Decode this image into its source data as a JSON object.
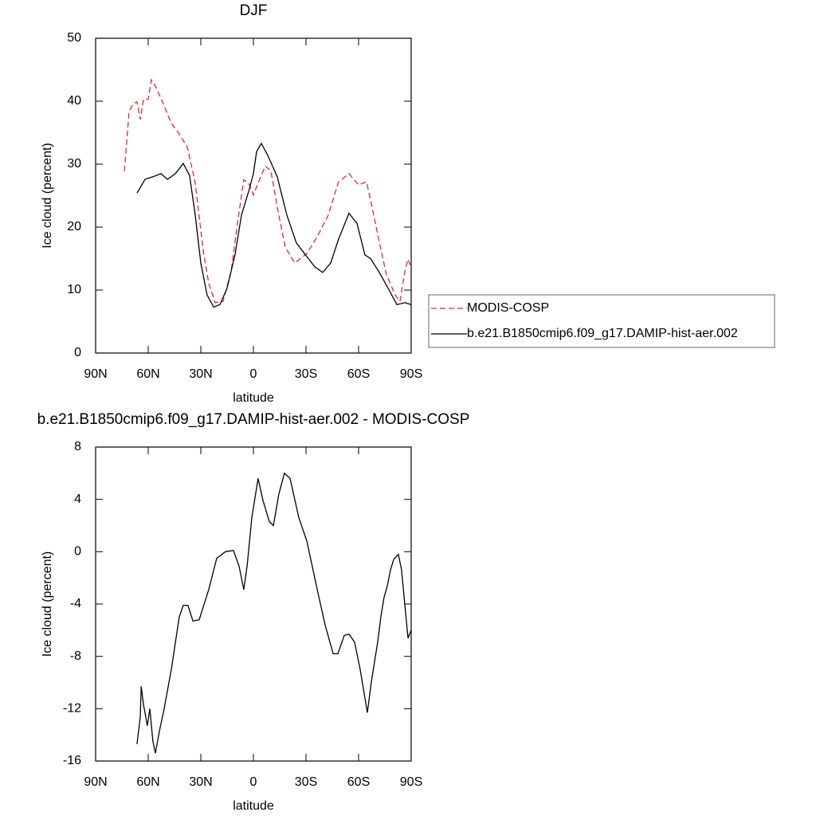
{
  "chart_data": [
    {
      "type": "line",
      "title": "DJF",
      "xlabel": "latitude",
      "ylabel": "Ice cloud (percent)",
      "xlim": [
        90,
        -90
      ],
      "xticks": [
        {
          "value": 90,
          "label": "90N"
        },
        {
          "value": 60,
          "label": "60N"
        },
        {
          "value": 30,
          "label": "30N"
        },
        0,
        {
          "value": -30,
          "label": "30S"
        },
        {
          "value": -60,
          "label": "60S"
        },
        {
          "value": -90,
          "label": "90S"
        }
      ],
      "ylim": [
        0,
        50
      ],
      "yticks": [
        0,
        10,
        20,
        30,
        40,
        50
      ],
      "legend": "right",
      "series": [
        {
          "name": "MODIS-COSP",
          "color": "#e8262b",
          "dash": true,
          "x": [
            73.6,
            70.9,
            68.6,
            66.4,
            64.5,
            62.7,
            60,
            58.2,
            55.5,
            51.4,
            46.8,
            42.3,
            37.7,
            33.2,
            28.6,
            25.5,
            21.8,
            17.3,
            12.7,
            9.1,
            5.5,
            2.7,
            0,
            -2.7,
            -6.8,
            -10,
            -13.6,
            -18.2,
            -23.6,
            -30.5,
            -36.8,
            -42.7,
            -48.6,
            -54.5,
            -60,
            -64.5,
            -67.7,
            -71.4,
            -75.9,
            -80.9,
            -83.6,
            -86.4,
            -88.2,
            -90
          ],
          "values": [
            28.9,
            38.4,
            39.6,
            39.9,
            37.1,
            40.3,
            40.3,
            43.4,
            42.2,
            39.6,
            36.5,
            34.8,
            32.7,
            27,
            16.2,
            11.1,
            8,
            8.2,
            13,
            20.6,
            27.5,
            27,
            25.1,
            27,
            29.7,
            28.9,
            23.2,
            16.8,
            14.3,
            15.8,
            18.7,
            21.9,
            27.2,
            28.5,
            26.7,
            27.2,
            23.2,
            18.1,
            12.4,
            9.2,
            8.2,
            13,
            14.9,
            13.7
          ]
        },
        {
          "name": "b.e21.B1850cmip6.f09_g17.DAMIP-hist-aer.002",
          "color": "#000000",
          "dash": false,
          "x": [
            66.4,
            61.8,
            57.3,
            52.7,
            49.1,
            44.5,
            40,
            36.4,
            33.2,
            30,
            26.4,
            22.7,
            19.1,
            15,
            10.5,
            6.8,
            2.7,
            0,
            -1.8,
            -4.5,
            -8.2,
            -13.6,
            -19.1,
            -24.5,
            -30.5,
            -35,
            -39.5,
            -44.1,
            -48.6,
            -54.5,
            -59.1,
            -63.6,
            -66.8,
            -71.4,
            -76.8,
            -81.8,
            -86.4,
            -90
          ],
          "values": [
            25.4,
            27.6,
            28,
            28.5,
            27.6,
            28.5,
            30.1,
            28.2,
            21.9,
            14.3,
            9.2,
            7.3,
            7.7,
            10.3,
            15.6,
            21.9,
            25.7,
            28.5,
            32,
            33.3,
            31.4,
            28,
            21.9,
            17.5,
            15.3,
            13.7,
            12.8,
            14.3,
            18.1,
            22.2,
            20.6,
            15.6,
            15,
            13,
            10.3,
            7.7,
            8,
            7.7
          ]
        }
      ]
    },
    {
      "type": "line",
      "title": "b.e21.B1850cmip6.f09_g17.DAMIP-hist-aer.002 - MODIS-COSP",
      "xlabel": "latitude",
      "ylabel": "Ice cloud (percent)",
      "xlim": [
        90,
        -90
      ],
      "xticks": [
        {
          "value": 90,
          "label": "90N"
        },
        {
          "value": 60,
          "label": "60N"
        },
        {
          "value": 30,
          "label": "30N"
        },
        0,
        {
          "value": -30,
          "label": "30S"
        },
        {
          "value": -60,
          "label": "60S"
        },
        {
          "value": -90,
          "label": "90S"
        }
      ],
      "ylim": [
        -16,
        8
      ],
      "yticks": [
        -16,
        -12,
        -8,
        -4,
        0,
        4,
        8
      ],
      "series": [
        {
          "color": "#000000",
          "dash": false,
          "x": [
            66.4,
            64.5,
            64,
            62.7,
            60.5,
            59.1,
            57.3,
            55.9,
            53.6,
            50.9,
            46.8,
            42.3,
            40,
            37.3,
            34.5,
            30.9,
            25.5,
            20.9,
            15.9,
            11.4,
            8.2,
            5.5,
            3.6,
            0.9,
            -2.7,
            -5.5,
            -9.1,
            -11.4,
            -14.5,
            -17.7,
            -20.9,
            -25.9,
            -30.5,
            -36.4,
            -40.9,
            -45.5,
            -48.2,
            -51.8,
            -54.5,
            -57.7,
            -60.9,
            -65,
            -67.3,
            -70.9,
            -72.7,
            -74.5,
            -76.4,
            -78.2,
            -80,
            -82.7,
            -84.5,
            -86.4,
            -88.2,
            -90
          ],
          "values": [
            -14.7,
            -12.6,
            -10.3,
            -11.7,
            -13.3,
            -12,
            -14.5,
            -15.4,
            -13.7,
            -12,
            -9,
            -5,
            -4.1,
            -4.1,
            -5.3,
            -5.2,
            -2.9,
            -0.5,
            0,
            0.1,
            -1.1,
            -2.9,
            -1.1,
            2.6,
            5.6,
            3.9,
            2.3,
            2,
            4.4,
            6,
            5.6,
            2.6,
            0.8,
            -2.9,
            -5.6,
            -7.8,
            -7.8,
            -6.4,
            -6.3,
            -6.9,
            -9,
            -12.3,
            -9.9,
            -6.9,
            -5,
            -3.5,
            -2.6,
            -1.4,
            -0.6,
            -0.2,
            -1.4,
            -4.1,
            -6.6,
            -6
          ]
        }
      ]
    }
  ]
}
